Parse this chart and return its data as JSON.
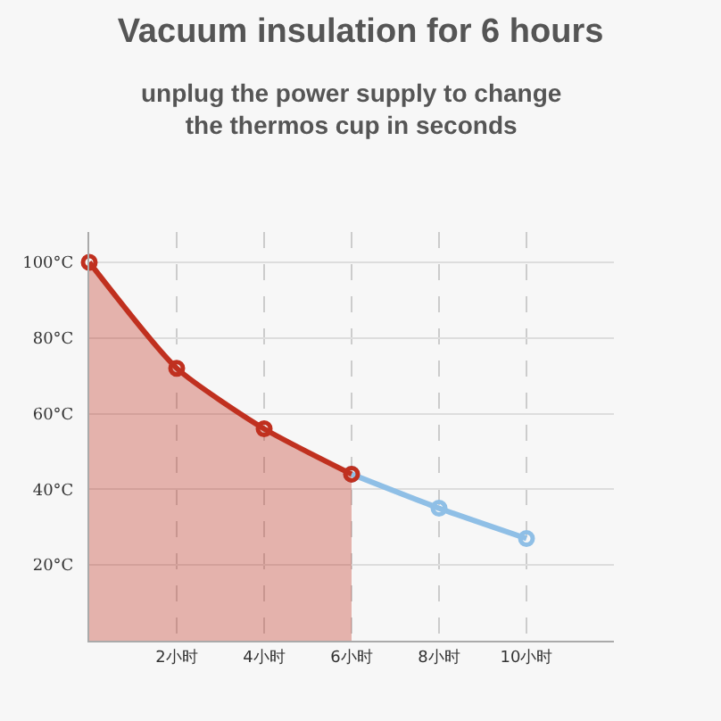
{
  "chart_data": {
    "type": "line",
    "title": "Vacuum insulation for 6 hours",
    "subtitle": "unplug the power supply to change\nthe thermos cup in seconds",
    "x": [
      0,
      2,
      4,
      6
    ],
    "series": [
      {
        "type": "area",
        "color": "#c0301f",
        "values": [
          100,
          72,
          56,
          44
        ]
      },
      {
        "color": "#8fbfe6",
        "x": [
          6,
          8,
          10
        ],
        "values": [
          44,
          35,
          27
        ]
      }
    ],
    "xlim": [
      0,
      12
    ],
    "xticks": [
      {
        "value": 2,
        "label": "2小时"
      },
      {
        "value": 4,
        "label": "4小时"
      },
      {
        "value": 6,
        "label": "6小时"
      },
      {
        "value": 8,
        "label": "8小时"
      },
      {
        "value": 10,
        "label": "10小时"
      }
    ],
    "ylim": [
      0,
      108
    ],
    "yticks": [
      {
        "value": 20,
        "label": "20°C"
      },
      {
        "value": 40,
        "label": "40°C"
      },
      {
        "value": 60,
        "label": "60°C"
      },
      {
        "value": 80,
        "label": "80°C"
      },
      {
        "value": 100,
        "label": "100°C"
      }
    ],
    "grid": true,
    "marker": "circle",
    "line_style": "solid",
    "legend": false
  }
}
